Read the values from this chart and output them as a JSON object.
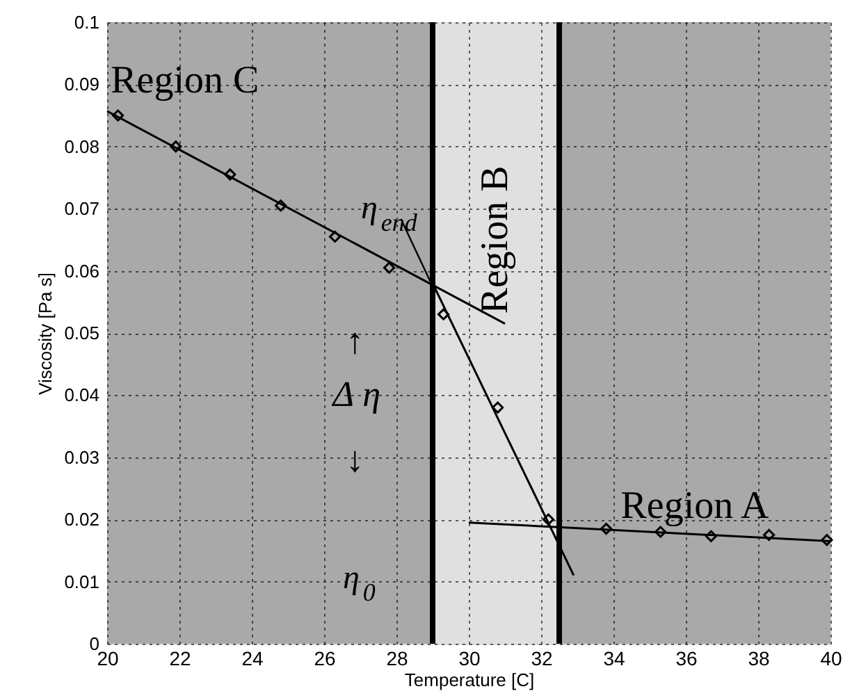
{
  "chart_data": {
    "type": "scatter",
    "xlabel": "Temperature [C]",
    "ylabel": "Viscosity [Pa s]",
    "xlim": [
      20,
      40
    ],
    "xticks": [
      20,
      22,
      24,
      26,
      28,
      30,
      32,
      34,
      36,
      38,
      40
    ],
    "ylim": [
      0,
      0.1
    ],
    "yticks": [
      0,
      0.01,
      0.02,
      0.03,
      0.04,
      0.05,
      0.06,
      0.07,
      0.08,
      0.09,
      0.1
    ],
    "grid": true,
    "series": [
      {
        "color": "#000000",
        "marker": "diamond",
        "x": [
          20.3,
          21.9,
          23.4,
          24.8,
          26.3,
          27.8,
          29.3,
          30.8,
          32.2,
          33.8,
          35.3,
          36.7,
          38.3,
          39.9
        ],
        "values": [
          0.085,
          0.08,
          0.0755,
          0.0705,
          0.0655,
          0.0605,
          0.053,
          0.038,
          0.02,
          0.0185,
          0.018,
          0.0173,
          0.0175,
          0.0167
        ]
      },
      {
        "type": "line",
        "color": "#000000",
        "line_style": "solid",
        "x": [
          20,
          31
        ],
        "values": [
          0.0857,
          0.0515
        ]
      },
      {
        "type": "line",
        "color": "#000000",
        "line_style": "solid",
        "x": [
          29,
          32.9
        ],
        "values": [
          0.058,
          0.011
        ]
      },
      {
        "type": "line",
        "color": "#000000",
        "line_style": "solid",
        "x": [
          30,
          40
        ],
        "values": [
          0.0195,
          0.0165
        ]
      }
    ],
    "bands": [
      {
        "axis": "x",
        "from": 20,
        "to": 29,
        "label": "Region C",
        "color": "#a9a9a9"
      },
      {
        "axis": "x",
        "from": 29,
        "to": 32.5,
        "label": "Region B",
        "color": "#e0e0e0"
      },
      {
        "axis": "x",
        "from": 32.5,
        "to": 40,
        "label": "Region A",
        "color": "#a9a9a9"
      }
    ],
    "ref_lines": [
      {
        "axis": "x",
        "value": 29,
        "color": "#000000"
      },
      {
        "axis": "x",
        "value": 32.5,
        "color": "#000000"
      }
    ],
    "annotations": [
      {
        "text": "η$_{end}$",
        "x": 29,
        "y": 0.0575
      },
      "↑",
      "Δ η",
      "↓",
      "η$_{0}$"
    ]
  }
}
